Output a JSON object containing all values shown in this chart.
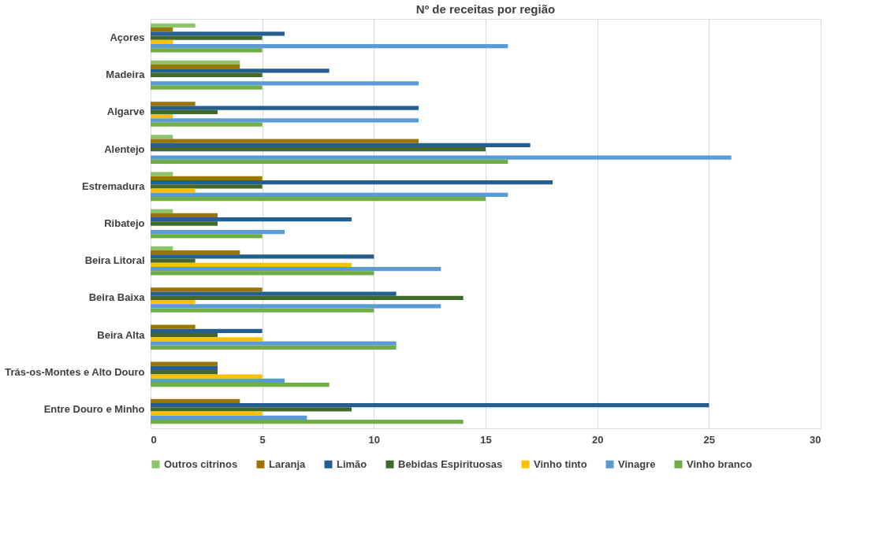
{
  "chart_data": {
    "type": "bar",
    "orientation": "horizontal",
    "title": "Nº de receitas por região",
    "categories": [
      "Açores",
      "Madeira",
      "Algarve",
      "Alentejo",
      "Estremadura",
      "Ribatejo",
      "Beira Litoral",
      "Beira Baixa",
      "Beira Alta",
      "Trás-os-Montes e Alto Douro",
      "Entre Douro e Minho"
    ],
    "series": [
      {
        "name": "Outros citrinos",
        "color": "#8ec46a",
        "values": [
          2,
          4,
          0,
          1,
          1,
          1,
          1,
          0,
          0,
          0,
          0
        ]
      },
      {
        "name": "Laranja",
        "color": "#9c7400",
        "values": [
          1,
          4,
          2,
          12,
          5,
          3,
          4,
          5,
          2,
          3,
          4
        ]
      },
      {
        "name": "Limão",
        "color": "#255e91",
        "values": [
          6,
          8,
          12,
          17,
          18,
          9,
          10,
          11,
          5,
          3,
          25
        ]
      },
      {
        "name": "Bebidas Espirituosas",
        "color": "#43682b",
        "values": [
          5,
          5,
          3,
          15,
          5,
          3,
          2,
          14,
          3,
          3,
          9
        ]
      },
      {
        "name": "Vinho tinto",
        "color": "#ffc000",
        "values": [
          1,
          0,
          1,
          0,
          2,
          0,
          9,
          2,
          5,
          5,
          5
        ]
      },
      {
        "name": "Vinagre",
        "color": "#5b9bd5",
        "values": [
          16,
          12,
          12,
          26,
          16,
          6,
          13,
          13,
          11,
          6,
          7
        ]
      },
      {
        "name": "Vinho branco",
        "color": "#70ad47",
        "values": [
          5,
          5,
          5,
          16,
          15,
          5,
          10,
          10,
          11,
          8,
          14
        ]
      }
    ],
    "xlim": [
      0,
      30
    ],
    "xticks": [
      0,
      5,
      10,
      15,
      20,
      25,
      30
    ],
    "grid": "x",
    "legend": "bottom"
  }
}
